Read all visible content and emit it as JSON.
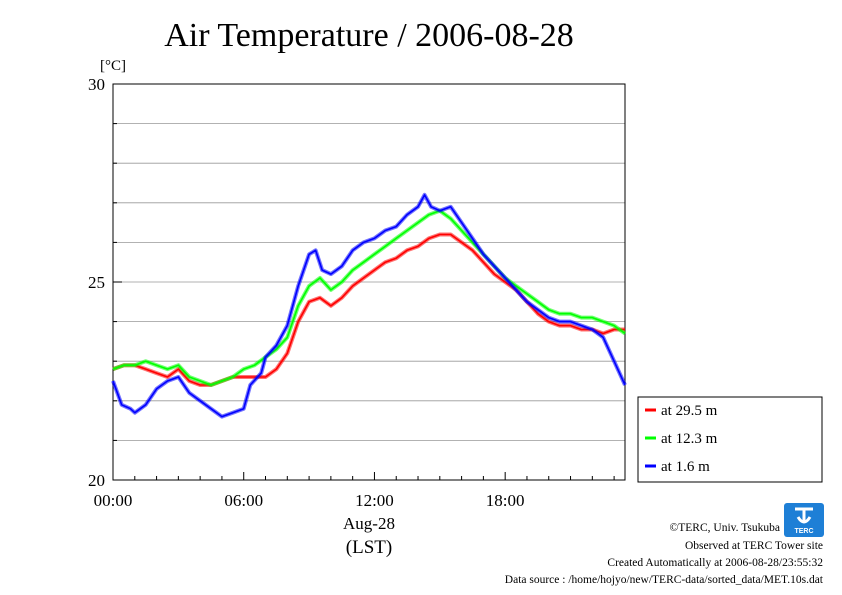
{
  "chart_data": {
    "type": "line",
    "title": "Air Temperature / 2006-08-28",
    "y_unit": "[°C]",
    "ylim": [
      20,
      30
    ],
    "y_ticks": [
      {
        "value": 20,
        "label": "20"
      },
      {
        "value": 25,
        "label": "25"
      },
      {
        "value": 30,
        "label": "30"
      }
    ],
    "y_minor_step": 1,
    "xlim": [
      0,
      23.5
    ],
    "x_ticks": [
      {
        "value": 0,
        "label": "00:00"
      },
      {
        "value": 6,
        "label": "06:00"
      },
      {
        "value": 12,
        "label": "12:00"
      },
      {
        "value": 18,
        "label": "18:00"
      }
    ],
    "x_date_label": "Aug-28",
    "x_axis_label": "(LST)",
    "grid": "horizontal",
    "legend_position": "right",
    "series": [
      {
        "name": "at 29.5 m",
        "color": "#ff0000",
        "points": [
          [
            0,
            22.8
          ],
          [
            0.5,
            22.9
          ],
          [
            1,
            22.9
          ],
          [
            1.5,
            22.8
          ],
          [
            2,
            22.7
          ],
          [
            2.5,
            22.6
          ],
          [
            3,
            22.8
          ],
          [
            3.5,
            22.5
          ],
          [
            4,
            22.4
          ],
          [
            4.5,
            22.4
          ],
          [
            5,
            22.5
          ],
          [
            5.5,
            22.6
          ],
          [
            6,
            22.6
          ],
          [
            6.5,
            22.6
          ],
          [
            7,
            22.6
          ],
          [
            7.5,
            22.8
          ],
          [
            8,
            23.2
          ],
          [
            8.5,
            24.0
          ],
          [
            9,
            24.5
          ],
          [
            9.5,
            24.6
          ],
          [
            10,
            24.4
          ],
          [
            10.5,
            24.6
          ],
          [
            11,
            24.9
          ],
          [
            11.5,
            25.1
          ],
          [
            12,
            25.3
          ],
          [
            12.5,
            25.5
          ],
          [
            13,
            25.6
          ],
          [
            13.5,
            25.8
          ],
          [
            14,
            25.9
          ],
          [
            14.5,
            26.1
          ],
          [
            15,
            26.2
          ],
          [
            15.5,
            26.2
          ],
          [
            16,
            26.0
          ],
          [
            16.5,
            25.8
          ],
          [
            17,
            25.5
          ],
          [
            17.5,
            25.2
          ],
          [
            18,
            25.0
          ],
          [
            18.5,
            24.8
          ],
          [
            19,
            24.5
          ],
          [
            19.5,
            24.2
          ],
          [
            20,
            24.0
          ],
          [
            20.5,
            23.9
          ],
          [
            21,
            23.9
          ],
          [
            21.5,
            23.8
          ],
          [
            22,
            23.8
          ],
          [
            22.5,
            23.7
          ],
          [
            23,
            23.8
          ],
          [
            23.5,
            23.8
          ]
        ]
      },
      {
        "name": "at 12.3 m",
        "color": "#00ff00",
        "points": [
          [
            0,
            22.8
          ],
          [
            0.5,
            22.9
          ],
          [
            1,
            22.9
          ],
          [
            1.5,
            23.0
          ],
          [
            2,
            22.9
          ],
          [
            2.5,
            22.8
          ],
          [
            3,
            22.9
          ],
          [
            3.5,
            22.6
          ],
          [
            4,
            22.5
          ],
          [
            4.5,
            22.4
          ],
          [
            5,
            22.5
          ],
          [
            5.5,
            22.6
          ],
          [
            6,
            22.8
          ],
          [
            6.5,
            22.9
          ],
          [
            7,
            23.1
          ],
          [
            7.5,
            23.3
          ],
          [
            8,
            23.6
          ],
          [
            8.5,
            24.4
          ],
          [
            9,
            24.9
          ],
          [
            9.5,
            25.1
          ],
          [
            10,
            24.8
          ],
          [
            10.5,
            25.0
          ],
          [
            11,
            25.3
          ],
          [
            11.5,
            25.5
          ],
          [
            12,
            25.7
          ],
          [
            12.5,
            25.9
          ],
          [
            13,
            26.1
          ],
          [
            13.5,
            26.3
          ],
          [
            14,
            26.5
          ],
          [
            14.5,
            26.7
          ],
          [
            15,
            26.8
          ],
          [
            15.5,
            26.6
          ],
          [
            16,
            26.3
          ],
          [
            16.5,
            26.0
          ],
          [
            17,
            25.7
          ],
          [
            17.5,
            25.4
          ],
          [
            18,
            25.1
          ],
          [
            18.5,
            24.9
          ],
          [
            19,
            24.7
          ],
          [
            19.5,
            24.5
          ],
          [
            20,
            24.3
          ],
          [
            20.5,
            24.2
          ],
          [
            21,
            24.2
          ],
          [
            21.5,
            24.1
          ],
          [
            22,
            24.1
          ],
          [
            22.5,
            24.0
          ],
          [
            23,
            23.9
          ],
          [
            23.5,
            23.7
          ]
        ]
      },
      {
        "name": "at 1.6 m",
        "color": "#0000ff",
        "points": [
          [
            0,
            22.5
          ],
          [
            0.4,
            21.9
          ],
          [
            0.8,
            21.8
          ],
          [
            1,
            21.7
          ],
          [
            1.5,
            21.9
          ],
          [
            2,
            22.3
          ],
          [
            2.5,
            22.5
          ],
          [
            3,
            22.6
          ],
          [
            3.5,
            22.2
          ],
          [
            4,
            22.0
          ],
          [
            4.5,
            21.8
          ],
          [
            5,
            21.6
          ],
          [
            5.5,
            21.7
          ],
          [
            6,
            21.8
          ],
          [
            6.3,
            22.4
          ],
          [
            6.8,
            22.7
          ],
          [
            7,
            23.1
          ],
          [
            7.5,
            23.4
          ],
          [
            8,
            23.9
          ],
          [
            8.5,
            24.9
          ],
          [
            9,
            25.7
          ],
          [
            9.3,
            25.8
          ],
          [
            9.6,
            25.3
          ],
          [
            10,
            25.2
          ],
          [
            10.5,
            25.4
          ],
          [
            11,
            25.8
          ],
          [
            11.5,
            26.0
          ],
          [
            12,
            26.1
          ],
          [
            12.5,
            26.3
          ],
          [
            13,
            26.4
          ],
          [
            13.5,
            26.7
          ],
          [
            14,
            26.9
          ],
          [
            14.3,
            27.2
          ],
          [
            14.6,
            26.9
          ],
          [
            15,
            26.8
          ],
          [
            15.5,
            26.9
          ],
          [
            16,
            26.5
          ],
          [
            16.5,
            26.1
          ],
          [
            17,
            25.7
          ],
          [
            17.5,
            25.4
          ],
          [
            18,
            25.1
          ],
          [
            18.5,
            24.8
          ],
          [
            19,
            24.5
          ],
          [
            19.5,
            24.3
          ],
          [
            20,
            24.1
          ],
          [
            20.5,
            24.0
          ],
          [
            21,
            24.0
          ],
          [
            21.5,
            23.9
          ],
          [
            22,
            23.8
          ],
          [
            22.5,
            23.6
          ],
          [
            23,
            23.0
          ],
          [
            23.5,
            22.4
          ]
        ]
      }
    ]
  },
  "footer": {
    "copyright": "©TERC, Univ. Tsukuba",
    "site": "Observed at TERC Tower site",
    "created": "Created Automatically at 2006-08-28/23:55:32",
    "source": "Data source : /home/hojyo/new/TERC-data/sorted_data/MET.10s.dat"
  },
  "logo": {
    "text": "TERC",
    "color": "#1e7fd6"
  }
}
